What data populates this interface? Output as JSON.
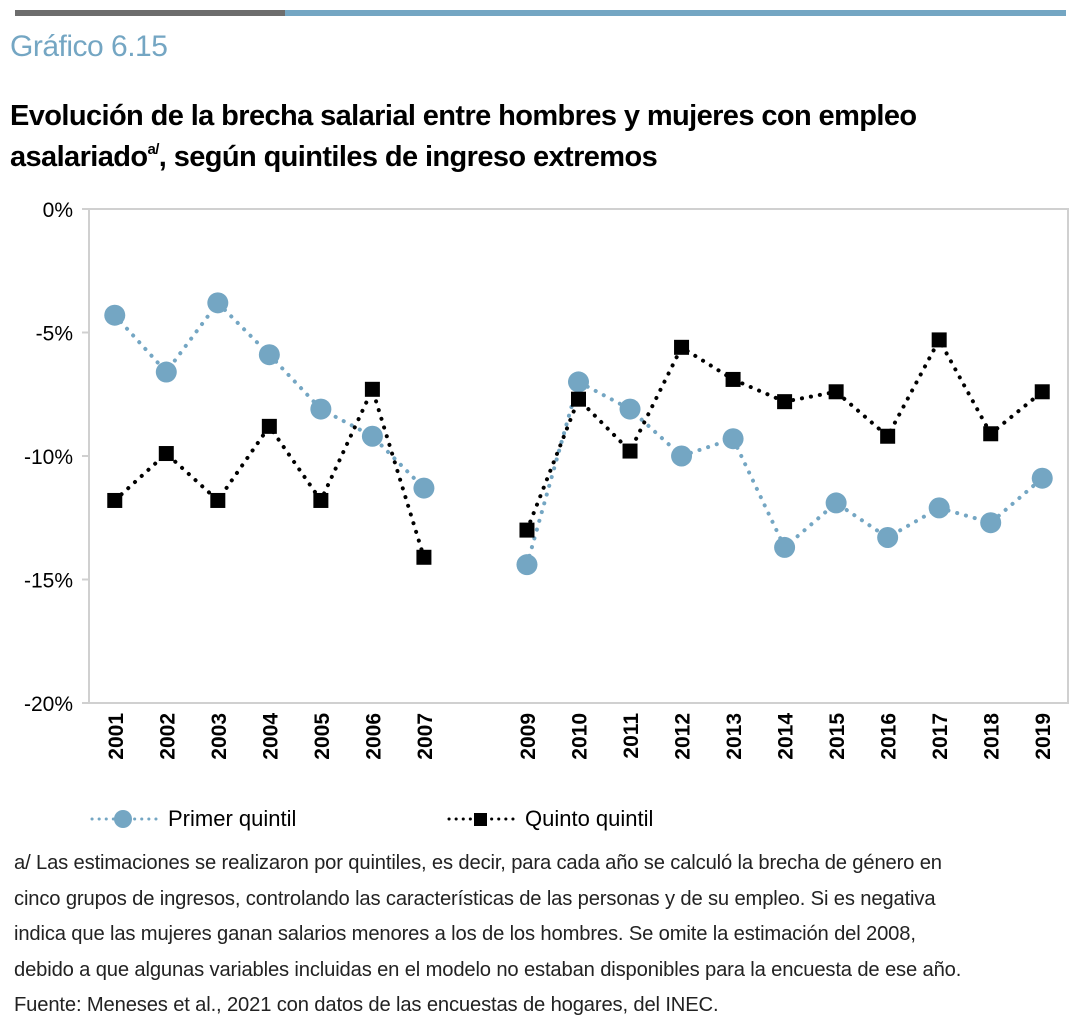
{
  "header": {
    "chart_number": "Gráfico 6.15",
    "title_line1": "Evolución de la brecha salarial entre hombres y mujeres con empleo",
    "title_line2_a": "asalariado",
    "title_sup": "a/",
    "title_line2_b": ", según quintiles de ingreso extremos"
  },
  "colors": {
    "primer_quintil": "#74a6c3",
    "quinto_quintil": "#000000",
    "accent_bar_gray": "#6d6d6d",
    "accent_bar_blue": "#74a6c3",
    "grid": "#d0d0d0"
  },
  "chart_data": {
    "type": "line",
    "title": "Evolución de la brecha salarial entre hombres y mujeres con empleo asalariado, según quintiles de ingreso extremos",
    "xlabel": "",
    "ylabel": "",
    "categories": [
      "2001",
      "2002",
      "2003",
      "2004",
      "2005",
      "2006",
      "2007",
      "",
      "2009",
      "2010",
      "2011",
      "2012",
      "2013",
      "2014",
      "2015",
      "2016",
      "2017",
      "2018",
      "2019"
    ],
    "ylim": [
      -20,
      0
    ],
    "yticks": [
      0,
      -5,
      -10,
      -15,
      -20
    ],
    "ytick_labels": [
      "0%",
      "-5%",
      "-10%",
      "-15%",
      "-20%"
    ],
    "grid": false,
    "legend_position": "bottom",
    "series": [
      {
        "name": "Primer quintil",
        "marker": "circle",
        "line_style": "dotted",
        "values": [
          -4.3,
          -6.6,
          -3.8,
          -5.9,
          -8.1,
          -9.2,
          -11.3,
          null,
          -14.4,
          -7.0,
          -8.1,
          -10.0,
          -9.3,
          -13.7,
          -11.9,
          -13.3,
          -12.1,
          -12.7,
          -10.9
        ]
      },
      {
        "name": "Quinto quintil",
        "marker": "square",
        "line_style": "dotted",
        "values": [
          -11.8,
          -9.9,
          -11.8,
          -8.8,
          -11.8,
          -7.3,
          -14.1,
          null,
          -13.0,
          -7.7,
          -9.8,
          -5.6,
          -6.9,
          -7.8,
          -7.4,
          -9.2,
          -5.3,
          -9.1,
          -7.4
        ]
      }
    ]
  },
  "legend": {
    "primer_label": "Primer quintil",
    "quinto_label": "Quinto quintil"
  },
  "footnote": {
    "lines": [
      "a/ Las estimaciones se realizaron por quintiles, es decir, para cada año se calculó la brecha de género en",
      "cinco grupos de ingresos, controlando las características de las personas y de su empleo. Si es negativa",
      "indica que las mujeres ganan salarios menores a los de los hombres. Se omite la estimación del 2008,",
      "debido a que algunas variables incluidas en el modelo no estaban disponibles para la encuesta de ese año.",
      "Fuente: Meneses et al., 2021 con datos de las encuestas de hogares, del INEC."
    ]
  }
}
